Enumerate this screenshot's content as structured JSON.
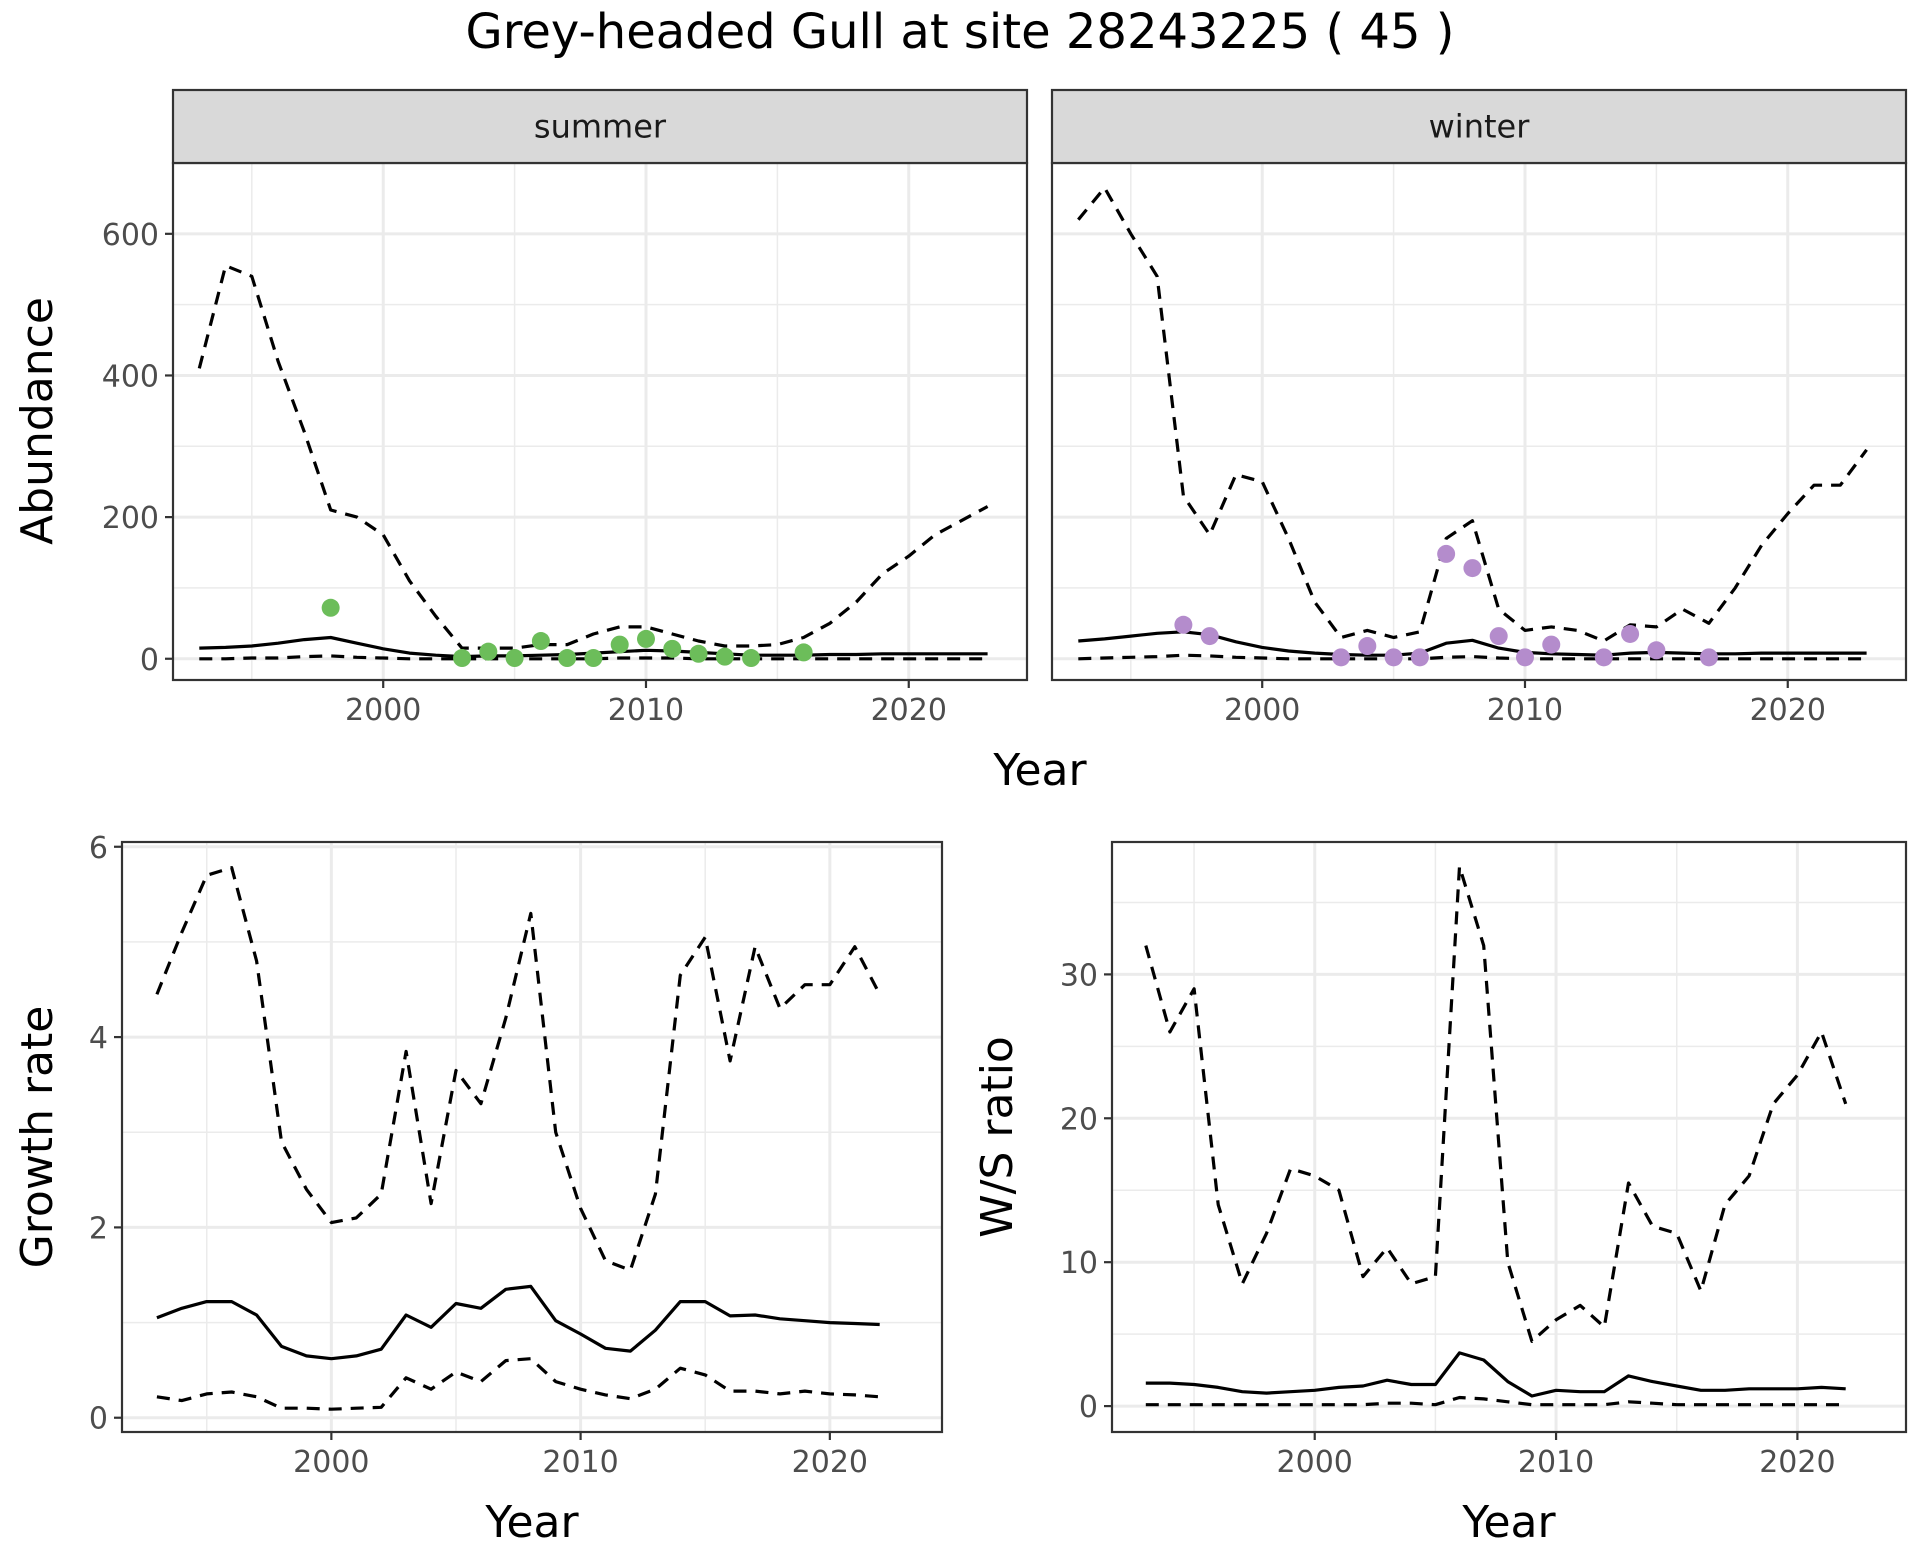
{
  "title": "Grey-headed Gull at site 28243225 ( 45 )",
  "colors": {
    "summer_points": "#6cbd5a",
    "winter_points": "#b48ccc",
    "lines": "#000000",
    "strip_bg": "#d9d9d9",
    "grid": "#ebebeb"
  },
  "chart_data": [
    {
      "type": "line",
      "panel": "summer",
      "strip_label": "summer",
      "xlabel": "Year",
      "ylabel": "Abundance",
      "xlim": [
        1992,
        2024.5
      ],
      "ylim": [
        -30,
        700
      ],
      "x_ticks": [
        2000,
        2010,
        2020
      ],
      "y_ticks": [
        0,
        200,
        400,
        600
      ],
      "grid": true,
      "series": [
        {
          "style": "solid",
          "x": [
            1993,
            1994,
            1995,
            1996,
            1997,
            1998,
            1999,
            2000,
            2001,
            2002,
            2003,
            2004,
            2005,
            2006,
            2007,
            2008,
            2009,
            2010,
            2011,
            2012,
            2013,
            2014,
            2015,
            2016,
            2017,
            2018,
            2019,
            2020,
            2021,
            2022,
            2023
          ],
          "y": [
            15,
            16,
            18,
            22,
            27,
            30,
            22,
            14,
            8,
            5,
            3,
            4,
            4,
            5,
            6,
            8,
            10,
            12,
            11,
            9,
            7,
            5,
            5,
            5,
            6,
            6,
            7,
            7,
            7,
            7,
            7
          ]
        },
        {
          "style": "dashed",
          "x": [
            1993,
            1994,
            1995,
            1996,
            1997,
            1998,
            1999,
            2000,
            2001,
            2002,
            2003,
            2004,
            2005,
            2006,
            2007,
            2008,
            2009,
            2010,
            2011,
            2012,
            2013,
            2014,
            2015,
            2016,
            2017,
            2018,
            2019,
            2020,
            2021,
            2022,
            2023
          ],
          "y": [
            410,
            555,
            540,
            420,
            320,
            210,
            200,
            175,
            110,
            60,
            15,
            15,
            15,
            20,
            20,
            35,
            45,
            45,
            35,
            25,
            18,
            18,
            20,
            30,
            50,
            80,
            120,
            145,
            175,
            195,
            215
          ]
        },
        {
          "style": "dashed",
          "x": [
            1993,
            1994,
            1995,
            1996,
            1997,
            1998,
            1999,
            2000,
            2001,
            2002,
            2003,
            2004,
            2005,
            2006,
            2007,
            2008,
            2009,
            2010,
            2011,
            2012,
            2013,
            2014,
            2015,
            2016,
            2017,
            2018,
            2019,
            2020,
            2021,
            2022,
            2023
          ],
          "y": [
            0,
            0,
            1,
            1,
            3,
            4,
            2,
            1,
            0,
            0,
            0,
            0,
            0,
            0,
            0,
            0,
            1,
            1,
            1,
            0,
            0,
            0,
            0,
            0,
            0,
            0,
            0,
            0,
            0,
            0,
            0
          ]
        }
      ],
      "points": {
        "x": [
          1998,
          2003,
          2004,
          2005,
          2006,
          2007,
          2008,
          2009,
          2010,
          2011,
          2012,
          2013,
          2014,
          2016
        ],
        "y": [
          72,
          1,
          10,
          1,
          25,
          1,
          1,
          20,
          28,
          14,
          7,
          3,
          1,
          9
        ]
      }
    },
    {
      "type": "line",
      "panel": "winter",
      "strip_label": "winter",
      "xlabel": "Year",
      "ylabel": "",
      "xlim": [
        1992,
        2024.5
      ],
      "ylim": [
        -30,
        700
      ],
      "x_ticks": [
        2000,
        2010,
        2020
      ],
      "y_ticks": [
        0,
        200,
        400,
        600
      ],
      "grid": true,
      "series": [
        {
          "style": "solid",
          "x": [
            1993,
            1994,
            1995,
            1996,
            1997,
            1998,
            1999,
            2000,
            2001,
            2002,
            2003,
            2004,
            2005,
            2006,
            2007,
            2008,
            2009,
            2010,
            2011,
            2012,
            2013,
            2014,
            2015,
            2016,
            2017,
            2018,
            2019,
            2020,
            2021,
            2022,
            2023
          ],
          "y": [
            25,
            28,
            32,
            36,
            38,
            34,
            24,
            16,
            11,
            8,
            6,
            5,
            5,
            8,
            22,
            26,
            15,
            9,
            7,
            6,
            5,
            8,
            9,
            8,
            7,
            7,
            8,
            8,
            8,
            8,
            8
          ]
        },
        {
          "style": "dashed",
          "x": [
            1993,
            1994,
            1995,
            1996,
            1997,
            1998,
            1999,
            2000,
            2001,
            2002,
            2003,
            2004,
            2005,
            2006,
            2007,
            2008,
            2009,
            2010,
            2011,
            2012,
            2013,
            2014,
            2015,
            2016,
            2017,
            2018,
            2019,
            2020,
            2021,
            2022,
            2023
          ],
          "y": [
            620,
            665,
            600,
            540,
            230,
            175,
            260,
            250,
            170,
            80,
            30,
            40,
            30,
            38,
            170,
            195,
            70,
            40,
            45,
            40,
            25,
            48,
            45,
            70,
            50,
            100,
            160,
            205,
            245,
            245,
            295
          ]
        },
        {
          "style": "dashed",
          "x": [
            1993,
            1994,
            1995,
            1996,
            1997,
            1998,
            1999,
            2000,
            2001,
            2002,
            2003,
            2004,
            2005,
            2006,
            2007,
            2008,
            2009,
            2010,
            2011,
            2012,
            2013,
            2014,
            2015,
            2016,
            2017,
            2018,
            2019,
            2020,
            2021,
            2022,
            2023
          ],
          "y": [
            0,
            1,
            2,
            3,
            5,
            4,
            2,
            1,
            0,
            0,
            0,
            0,
            0,
            0,
            2,
            3,
            1,
            0,
            0,
            0,
            0,
            0,
            0,
            0,
            0,
            0,
            0,
            0,
            0,
            0,
            0
          ]
        }
      ],
      "points": {
        "x": [
          1997,
          1998,
          2003,
          2004,
          2005,
          2006,
          2007,
          2008,
          2009,
          2010,
          2011,
          2013,
          2014,
          2015,
          2017
        ],
        "y": [
          48,
          32,
          2,
          18,
          2,
          2,
          148,
          128,
          32,
          2,
          20,
          2,
          35,
          12,
          2
        ]
      }
    },
    {
      "type": "line",
      "panel": "growth",
      "xlabel": "Year",
      "ylabel": "Growth rate",
      "xlim": [
        1991.6,
        2024.5
      ],
      "ylim": [
        -0.15,
        6.05
      ],
      "x_ticks": [
        2000,
        2010,
        2020
      ],
      "y_ticks": [
        0,
        2,
        4,
        6
      ],
      "grid": true,
      "series": [
        {
          "style": "solid",
          "x": [
            1993,
            1994,
            1995,
            1996,
            1997,
            1998,
            1999,
            2000,
            2001,
            2002,
            2003,
            2004,
            2005,
            2006,
            2007,
            2008,
            2009,
            2010,
            2011,
            2012,
            2013,
            2014,
            2015,
            2016,
            2017,
            2018,
            2019,
            2020,
            2021,
            2022
          ],
          "y": [
            1.05,
            1.15,
            1.22,
            1.22,
            1.08,
            0.75,
            0.65,
            0.62,
            0.65,
            0.72,
            1.08,
            0.95,
            1.2,
            1.15,
            1.35,
            1.38,
            1.02,
            0.88,
            0.73,
            0.7,
            0.92,
            1.22,
            1.22,
            1.07,
            1.08,
            1.04,
            1.02,
            1.0,
            0.99,
            0.98
          ]
        },
        {
          "style": "dashed",
          "x": [
            1993,
            1994,
            1995,
            1996,
            1997,
            1998,
            1999,
            2000,
            2001,
            2002,
            2003,
            2004,
            2005,
            2006,
            2007,
            2008,
            2009,
            2010,
            2011,
            2012,
            2013,
            2014,
            2015,
            2016,
            2017,
            2018,
            2019,
            2020,
            2021,
            2022
          ],
          "y": [
            4.45,
            5.1,
            5.7,
            5.78,
            4.8,
            2.9,
            2.4,
            2.05,
            2.1,
            2.35,
            3.85,
            2.25,
            3.65,
            3.3,
            4.2,
            5.3,
            3.0,
            2.2,
            1.65,
            1.55,
            2.35,
            4.65,
            5.05,
            3.75,
            4.95,
            4.3,
            4.55,
            4.55,
            4.95,
            4.45
          ]
        },
        {
          "style": "dashed",
          "x": [
            1993,
            1994,
            1995,
            1996,
            1997,
            1998,
            1999,
            2000,
            2001,
            2002,
            2003,
            2004,
            2005,
            2006,
            2007,
            2008,
            2009,
            2010,
            2011,
            2012,
            2013,
            2014,
            2015,
            2016,
            2017,
            2018,
            2019,
            2020,
            2021,
            2022
          ],
          "y": [
            0.22,
            0.18,
            0.25,
            0.27,
            0.22,
            0.1,
            0.1,
            0.09,
            0.1,
            0.11,
            0.42,
            0.3,
            0.48,
            0.38,
            0.6,
            0.62,
            0.38,
            0.3,
            0.24,
            0.2,
            0.3,
            0.52,
            0.45,
            0.28,
            0.28,
            0.25,
            0.28,
            0.25,
            0.24,
            0.22
          ]
        }
      ]
    },
    {
      "type": "line",
      "panel": "ws_ratio",
      "xlabel": "Year",
      "ylabel": "W/S ratio",
      "xlim": [
        1991.6,
        2024.5
      ],
      "ylim": [
        -1.8,
        39.2
      ],
      "x_ticks": [
        2000,
        2010,
        2020
      ],
      "y_ticks": [
        0,
        10,
        20,
        30
      ],
      "grid": true,
      "series": [
        {
          "style": "solid",
          "x": [
            1993,
            1994,
            1995,
            1996,
            1997,
            1998,
            1999,
            2000,
            2001,
            2002,
            2003,
            2004,
            2005,
            2006,
            2007,
            2008,
            2009,
            2010,
            2011,
            2012,
            2013,
            2014,
            2015,
            2016,
            2017,
            2018,
            2019,
            2020,
            2021,
            2022
          ],
          "y": [
            1.6,
            1.6,
            1.5,
            1.3,
            1.0,
            0.9,
            1.0,
            1.1,
            1.3,
            1.4,
            1.8,
            1.5,
            1.5,
            3.7,
            3.2,
            1.7,
            0.7,
            1.1,
            1.0,
            1.0,
            2.1,
            1.7,
            1.4,
            1.1,
            1.1,
            1.2,
            1.2,
            1.2,
            1.3,
            1.2
          ]
        },
        {
          "style": "dashed",
          "x": [
            1993,
            1994,
            1995,
            1996,
            1997,
            1998,
            1999,
            2000,
            2001,
            2002,
            2003,
            2004,
            2005,
            2006,
            2007,
            2008,
            2009,
            2010,
            2011,
            2012,
            2013,
            2014,
            2015,
            2016,
            2017,
            2018,
            2019,
            2020,
            2021,
            2022
          ],
          "y": [
            32,
            26,
            29,
            14,
            8.5,
            12,
            16.5,
            16,
            15,
            9,
            11,
            8.5,
            9,
            37.5,
            32,
            10,
            4.5,
            6,
            7,
            5.5,
            15.5,
            12.5,
            12,
            8,
            14,
            16,
            21,
            23,
            26,
            21
          ]
        },
        {
          "style": "dashed",
          "x": [
            1993,
            1994,
            1995,
            1996,
            1997,
            1998,
            1999,
            2000,
            2001,
            2002,
            2003,
            2004,
            2005,
            2006,
            2007,
            2008,
            2009,
            2010,
            2011,
            2012,
            2013,
            2014,
            2015,
            2016,
            2017,
            2018,
            2019,
            2020,
            2021,
            2022
          ],
          "y": [
            0.1,
            0.1,
            0.1,
            0.1,
            0.1,
            0.1,
            0.1,
            0.1,
            0.1,
            0.1,
            0.2,
            0.2,
            0.1,
            0.6,
            0.5,
            0.3,
            0.1,
            0.1,
            0.1,
            0.1,
            0.3,
            0.2,
            0.1,
            0.1,
            0.1,
            0.1,
            0.1,
            0.1,
            0.1,
            0.1
          ]
        }
      ]
    }
  ]
}
